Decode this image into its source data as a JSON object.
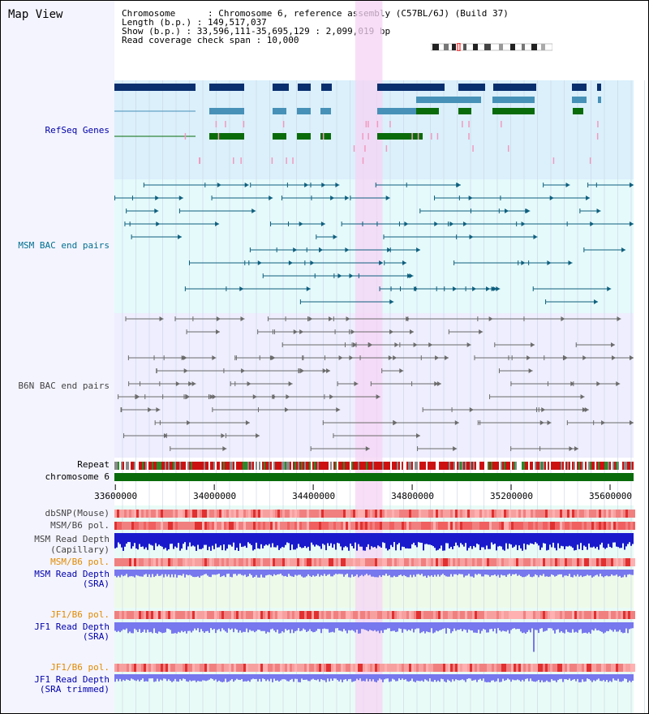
{
  "title": "Map View",
  "info": {
    "chromosome": "Chromosome      : Chromosome 6, reference assembly (C57BL/6J) (Build 37)",
    "length": "Length (b.p.) : 149,517,037",
    "show": "Show (b.p.) : 33,596,111-35,695,129 : 2,099,019 bp",
    "coverage_span": "Read coverage check span : 10,000"
  },
  "tracks": {
    "refseq": "RefSeq Genes",
    "msm_bac": "MSM BAC end pairs",
    "b6n_bac": "B6N BAC end pairs",
    "repeat": "Repeat",
    "chromosome": "chromosome 6",
    "dbsnp": "dbSNP(Mouse)",
    "msm_b6_pol1": "MSM/B6 pol.",
    "msm_depth_cap": "MSM Read Depth",
    "capillary": "(Capillary)",
    "msm_b6_pol2": "MSM/B6 pol.",
    "msm_depth_sra": "MSM Read Depth",
    "sra": "(SRA)",
    "jf1_b6_pol1": "JF1/B6 pol.",
    "jf1_depth": "JF1 Read Depth",
    "jf1_b6_pol2": "JF1/B6 pol.",
    "jf1_depth2": "JF1 Read Depth",
    "sra_trimmed": "(SRA trimmed)"
  },
  "ruler": {
    "labels": [
      "33600000",
      "34000000",
      "34400000",
      "34800000",
      "35200000",
      "35600000"
    ],
    "values": [
      33600000,
      34000000,
      34400000,
      34800000,
      35200000,
      35600000
    ]
  },
  "view": {
    "start": 33596111,
    "end": 35695129
  },
  "highlight": {
    "start": 34570000,
    "end": 34680000
  },
  "colors": {
    "refseq_bg": "#dbf0fb",
    "bac_bg": "#e5fafb",
    "highlight": "#f6d4f4",
    "gene_dark": "#0a2f6e",
    "gene_mid": "#4791b8",
    "gene_green": "#0a6b0a",
    "msm_line": "#0e5f7e",
    "b6n_line": "#6b6b6b",
    "repeat_red": "#cc1111",
    "chrom_green": "#0a6b0a",
    "depth_blue": "#1a1acc",
    "depth_light": "#7777ee"
  }
}
